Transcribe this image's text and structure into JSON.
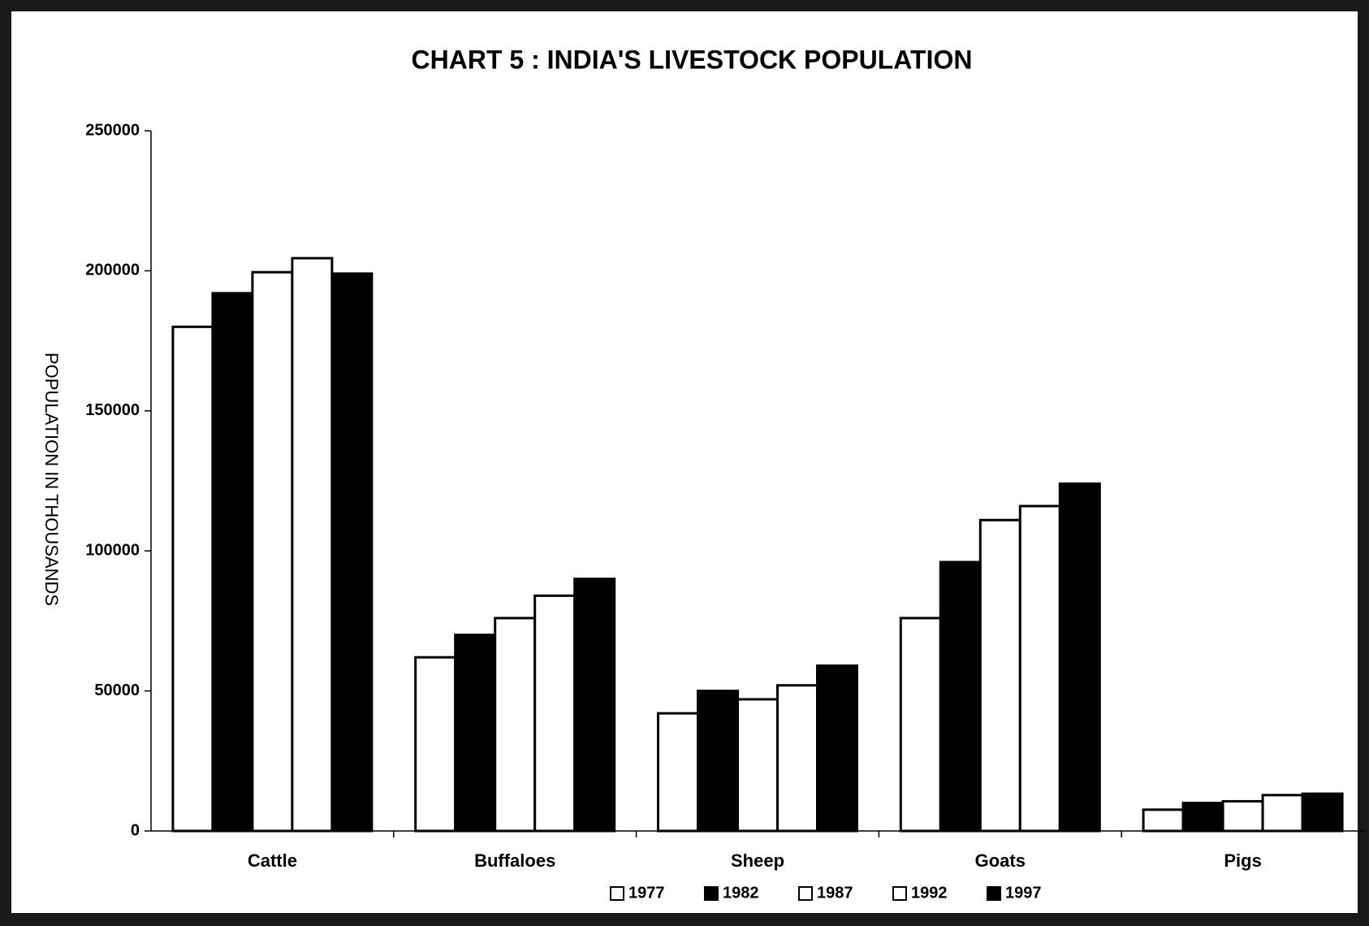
{
  "chart_data": {
    "type": "bar",
    "title": "CHART 5 : INDIA'S LIVESTOCK POPULATION",
    "y_label": "POPULATION IN THOUSANDS",
    "categories": [
      "Cattle",
      "Buffaloes",
      "Sheep",
      "Goats",
      "Pigs"
    ],
    "series": [
      {
        "name": "1977",
        "color": "#ffffff",
        "values": [
          180000,
          62000,
          42000,
          76000,
          7600
        ]
      },
      {
        "name": "1982",
        "color": "#000000",
        "values": [
          192000,
          70000,
          50000,
          96000,
          10000
        ]
      },
      {
        "name": "1987",
        "color": "#ffffff",
        "values": [
          199500,
          76000,
          47000,
          111000,
          10600
        ]
      },
      {
        "name": "1992",
        "color": "#ffffff",
        "values": [
          204500,
          84000,
          52000,
          116000,
          12800
        ]
      },
      {
        "name": "1997",
        "color": "#000000",
        "values": [
          199000,
          90000,
          59000,
          124000,
          13300
        ]
      }
    ],
    "ylim": [
      0,
      250000
    ],
    "yticks": [
      0,
      50000,
      100000,
      150000,
      200000,
      250000
    ],
    "legend": "bottom"
  }
}
